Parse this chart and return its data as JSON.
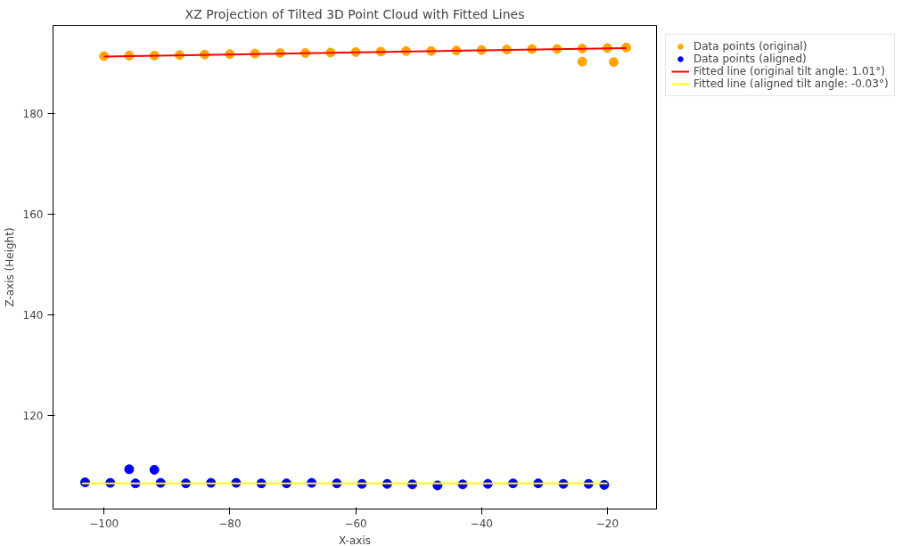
{
  "chart_data": {
    "type": "scatter",
    "title": "XZ Projection of Tilted 3D Point Cloud with Fitted Lines",
    "xlabel": "X-axis",
    "ylabel": "Z-axis (Height)",
    "xlim": [
      -108.1,
      -12.2
    ],
    "ylim": [
      101.4,
      197.5
    ],
    "xticks": [
      -100,
      -80,
      -60,
      -40,
      -20
    ],
    "yticks": [
      120,
      140,
      160,
      180
    ],
    "grid": false,
    "legend": "right",
    "series": [
      {
        "name": "Data points (original)",
        "marker": "circle",
        "color": "#ffa500",
        "x": [
          -100,
          -96,
          -92,
          -88,
          -84,
          -80,
          -76,
          -72,
          -68,
          -64,
          -60,
          -56,
          -52,
          -48,
          -44,
          -40,
          -36,
          -32,
          -28,
          -24,
          -20,
          -17,
          -24,
          -19
        ],
        "values": [
          191.4,
          191.5,
          191.5,
          191.6,
          191.7,
          191.8,
          191.9,
          192.0,
          192.0,
          192.1,
          192.2,
          192.3,
          192.4,
          192.4,
          192.5,
          192.6,
          192.7,
          192.8,
          192.8,
          192.9,
          193.0,
          193.1,
          190.3,
          190.2
        ]
      },
      {
        "name": "Data points (aligned)",
        "marker": "circle",
        "color": "#0000ff",
        "x": [
          -103,
          -99,
          -95,
          -91,
          -87,
          -83,
          -79,
          -75,
          -71,
          -67,
          -63,
          -59,
          -55,
          -51,
          -47,
          -43,
          -39,
          -35,
          -31,
          -27,
          -23,
          -20.5,
          -96,
          -92
        ],
        "values": [
          106.7,
          106.6,
          106.5,
          106.6,
          106.5,
          106.6,
          106.6,
          106.5,
          106.5,
          106.6,
          106.5,
          106.4,
          106.4,
          106.3,
          106.1,
          106.3,
          106.4,
          106.5,
          106.5,
          106.4,
          106.4,
          106.2,
          109.3,
          109.2
        ]
      },
      {
        "name": "Fitted line (original tilt angle: 1.01°)",
        "type": "line",
        "color": "#ff0000",
        "x": [
          -100,
          -17
        ],
        "values": [
          191.3,
          193.0
        ]
      },
      {
        "name": "Fitted line (aligned tilt angle: -0.03°)",
        "type": "line",
        "color": "#ffff00",
        "x": [
          -103.5,
          -20
        ],
        "values": [
          106.5,
          106.5
        ]
      }
    ]
  }
}
